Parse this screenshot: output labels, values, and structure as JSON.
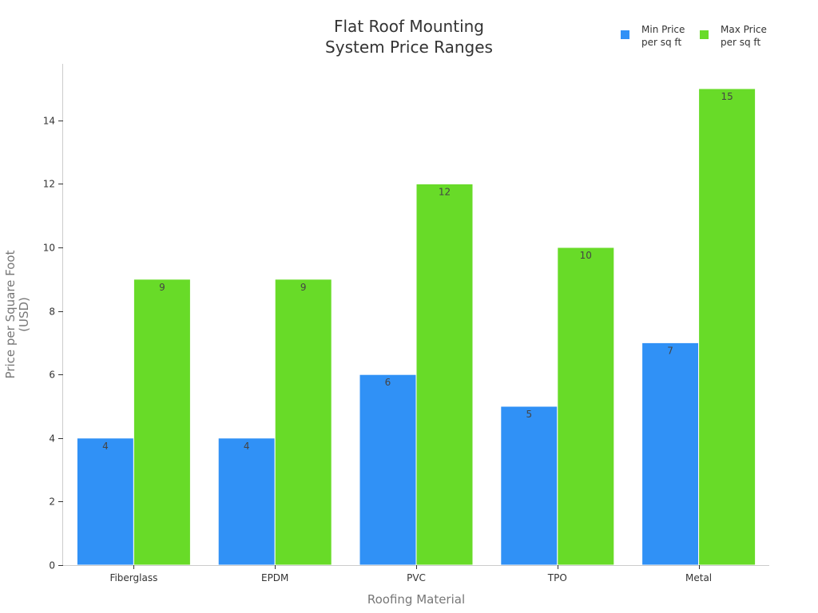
{
  "chart_data": {
    "type": "bar",
    "title": [
      "Flat Roof Mounting",
      "System Price Ranges"
    ],
    "xlabel": "Roofing Material",
    "ylabel": [
      "Price per Square Foot",
      "(USD)"
    ],
    "categories": [
      "Fiberglass",
      "EPDM",
      "PVC",
      "TPO",
      "Metal"
    ],
    "series": [
      {
        "name": [
          "Min Price",
          "per sq ft"
        ],
        "color": "#3091f6",
        "values": [
          4,
          4,
          6,
          5,
          7
        ]
      },
      {
        "name": [
          "Max Price",
          "per sq ft"
        ],
        "color": "#68db28",
        "values": [
          9,
          9,
          12,
          10,
          15
        ]
      }
    ],
    "yticks": [
      0,
      2,
      4,
      6,
      8,
      10,
      12,
      14
    ],
    "ylim": [
      0,
      15.7
    ],
    "grid": false,
    "legend": "top-right"
  }
}
